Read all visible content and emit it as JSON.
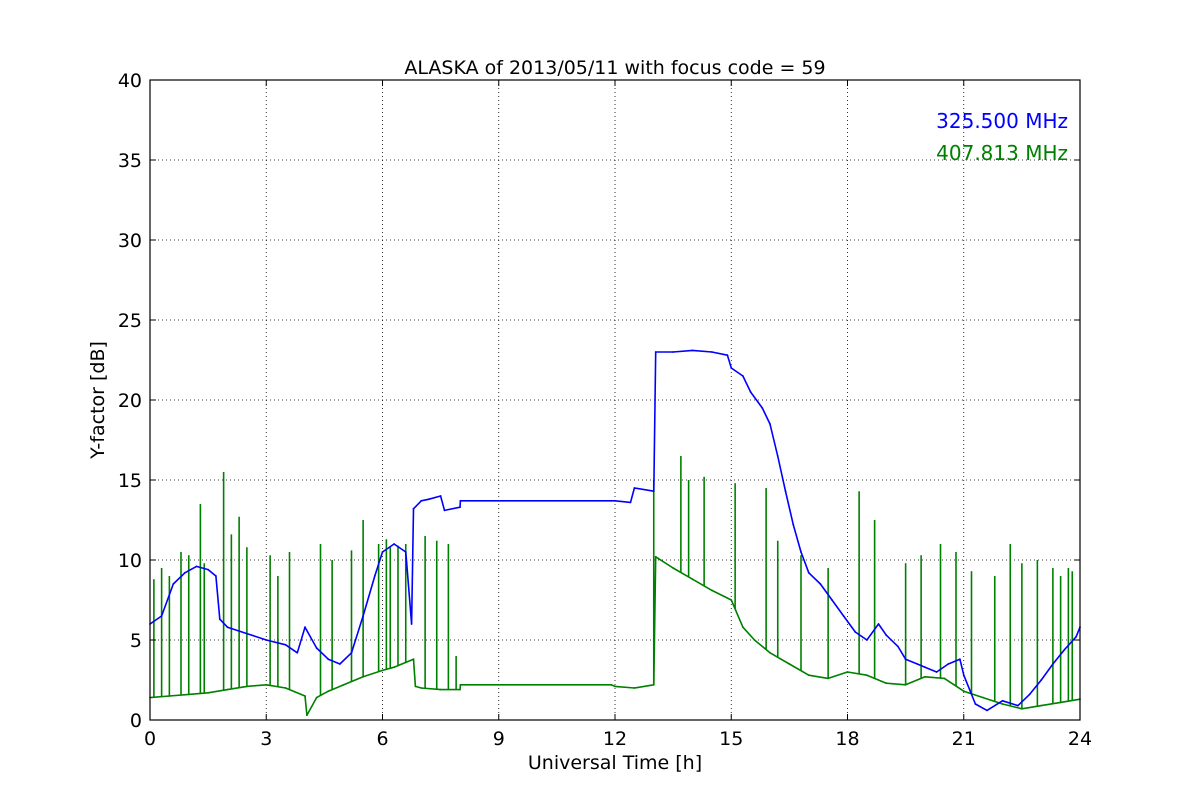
{
  "chart_data": {
    "type": "line",
    "title": "ALASKA of 2013/05/11 with focus code = 59",
    "xlabel": "Universal Time [h]",
    "ylabel": "Y-factor [dB]",
    "xlim": [
      0,
      24
    ],
    "ylim": [
      0,
      40
    ],
    "xticks": [
      0,
      3,
      6,
      9,
      12,
      15,
      18,
      21,
      24
    ],
    "yticks": [
      0,
      5,
      10,
      15,
      20,
      25,
      30,
      35,
      40
    ],
    "grid": true,
    "legend_placement": "top-right",
    "series": [
      {
        "name": "325.500 MHz",
        "color": "#0000ff",
        "x": [
          0,
          0.3,
          0.6,
          0.9,
          1.2,
          1.5,
          1.7,
          1.8,
          2.0,
          2.5,
          3.0,
          3.5,
          3.8,
          4.0,
          4.3,
          4.6,
          4.9,
          5.2,
          5.5,
          5.8,
          6.0,
          6.3,
          6.6,
          6.75,
          6.8,
          7.0,
          7.2,
          7.5,
          7.6,
          8.0,
          8.01,
          11.9,
          12.0,
          12.4,
          12.5,
          13.0,
          13.05,
          13.5,
          14.0,
          14.5,
          14.9,
          15.0,
          15.3,
          15.5,
          15.8,
          16.0,
          16.2,
          16.4,
          16.6,
          16.8,
          17.0,
          17.3,
          17.6,
          17.9,
          18.2,
          18.5,
          18.8,
          19.0,
          19.3,
          19.5,
          19.8,
          20.0,
          20.3,
          20.6,
          20.9,
          21.0,
          21.3,
          21.6,
          22.0,
          22.4,
          22.7,
          23.0,
          23.3,
          23.6,
          23.9,
          24.0
        ],
        "y": [
          6.0,
          6.5,
          8.5,
          9.2,
          9.6,
          9.4,
          9.0,
          6.3,
          5.8,
          5.4,
          5.0,
          4.7,
          4.2,
          5.8,
          4.5,
          3.8,
          3.5,
          4.2,
          6.5,
          9.0,
          10.5,
          11.0,
          10.5,
          6.0,
          13.2,
          13.7,
          13.8,
          14.0,
          13.1,
          13.3,
          13.7,
          13.7,
          13.7,
          13.6,
          14.5,
          14.3,
          23.0,
          23.0,
          23.1,
          23.0,
          22.8,
          22.0,
          21.5,
          20.5,
          19.5,
          18.5,
          16.5,
          14.3,
          12.2,
          10.5,
          9.2,
          8.5,
          7.5,
          6.5,
          5.5,
          5.0,
          6.0,
          5.3,
          4.6,
          3.8,
          3.5,
          3.3,
          3.0,
          3.5,
          3.8,
          2.8,
          1.0,
          0.6,
          1.2,
          0.9,
          1.6,
          2.5,
          3.5,
          4.4,
          5.2,
          5.8
        ]
      },
      {
        "name": "407.813 MHz",
        "color": "#008000",
        "x": [
          0,
          0.5,
          1.0,
          1.5,
          2.0,
          2.5,
          3.0,
          3.5,
          4.0,
          4.05,
          4.3,
          4.6,
          5.0,
          5.5,
          6.0,
          6.3,
          6.6,
          6.8,
          6.85,
          7.0,
          7.5,
          8.0,
          8.01,
          11.9,
          12.0,
          12.5,
          13.0,
          13.05,
          13.5,
          14.0,
          14.5,
          15.0,
          15.3,
          15.6,
          16.0,
          16.5,
          17.0,
          17.5,
          18.0,
          18.5,
          19.0,
          19.5,
          20.0,
          20.5,
          21.0,
          21.5,
          22.0,
          22.5,
          23.0,
          23.5,
          24.0
        ],
        "y": [
          1.4,
          1.5,
          1.6,
          1.7,
          1.9,
          2.1,
          2.2,
          2.0,
          1.5,
          0.3,
          1.4,
          1.8,
          2.2,
          2.7,
          3.1,
          3.3,
          3.6,
          3.8,
          2.1,
          2.0,
          1.9,
          1.9,
          2.2,
          2.2,
          2.1,
          2.0,
          2.2,
          10.2,
          9.5,
          8.8,
          8.1,
          7.5,
          5.8,
          5.0,
          4.2,
          3.5,
          2.8,
          2.6,
          3.0,
          2.8,
          2.3,
          2.2,
          2.7,
          2.6,
          1.8,
          1.4,
          1.0,
          0.7,
          0.9,
          1.1,
          1.3
        ]
      }
    ],
    "spikes": {
      "407.813 MHz": {
        "x": [
          0.1,
          0.3,
          0.5,
          0.8,
          1.0,
          1.3,
          1.4,
          1.9,
          2.1,
          2.3,
          2.5,
          3.1,
          3.3,
          3.6,
          4.4,
          4.7,
          5.2,
          5.5,
          5.9,
          6.1,
          6.2,
          6.4,
          6.6,
          7.1,
          7.4,
          7.7,
          7.9,
          13.0,
          13.7,
          13.9,
          14.3,
          15.1,
          15.9,
          16.2,
          16.8,
          17.5,
          18.3,
          18.7,
          19.5,
          19.9,
          20.4,
          20.8,
          21.2,
          21.8,
          22.2,
          22.5,
          22.9,
          23.3,
          23.5,
          23.7,
          23.8
        ],
        "y": [
          8.8,
          9.5,
          9.0,
          10.5,
          10.3,
          13.5,
          9.8,
          15.5,
          11.6,
          12.7,
          10.8,
          10.3,
          9.0,
          10.5,
          11.0,
          10.0,
          10.6,
          12.5,
          11.0,
          11.3,
          10.8,
          10.9,
          11.0,
          11.5,
          11.2,
          11.0,
          4.0,
          15.0,
          16.5,
          15.0,
          15.2,
          14.8,
          14.5,
          11.2,
          10.3,
          9.5,
          14.3,
          12.5,
          9.8,
          10.3,
          11.0,
          10.5,
          9.3,
          9.0,
          11.0,
          9.8,
          10.0,
          9.5,
          9.0,
          9.5,
          9.3
        ]
      }
    }
  }
}
